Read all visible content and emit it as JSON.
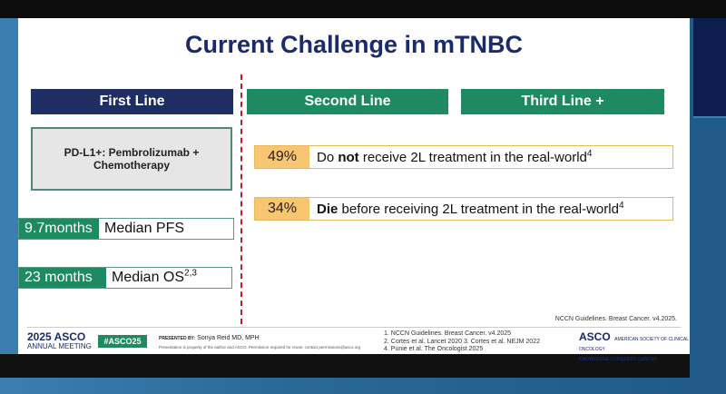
{
  "slide": {
    "title": "Current Challenge in mTNBC",
    "headers": {
      "first": "First Line",
      "second": "Second Line",
      "third": "Third Line +"
    },
    "first_line_box": "PD-L1+: Pembrolizumab + Chemotherapy",
    "stats": [
      {
        "value": "9.7months",
        "label": "Median PFS",
        "sup": ""
      },
      {
        "value": "23 months",
        "label": "Median OS",
        "sup": "2,3"
      }
    ],
    "second_line_rows": [
      {
        "pct": "49%",
        "pre": "Do ",
        "bold": "not",
        "post": " receive 2L treatment in the real-world",
        "sup": "4"
      },
      {
        "pct": "34%",
        "pre": "",
        "bold": "Die",
        "post": " before receiving 2L treatment in the real-world",
        "sup": "4"
      }
    ],
    "footnote_right": "NCCN Guidelines. Breast Cancer. v4.2025.",
    "footer": {
      "year_brand": "2025 ASCO",
      "meeting": "ANNUAL MEETING",
      "hashtag": "#ASCO25",
      "presented_label": "PRESENTED BY:",
      "presenter": "Sonya Reid MD, MPH",
      "disclaimer": "Presentation is property of the author and ASCO. Permission required for reuse; contact permissions@asco.org",
      "references": [
        "1. NCCN Guidelines. Breast Cancer. v4.2025",
        "2. Cortes et al. Lancet 2020 3. Cortes et al. NEJM 2022",
        "4. Punie et al. The Oncologist 2025"
      ],
      "asco_brand": "ASCO",
      "asco_sub": "AMERICAN SOCIETY OF CLINICAL ONCOLOGY",
      "asco_tagline": "KNOWLEDGE CONQUERS CANCER"
    }
  },
  "colors": {
    "navy": "#1e2e62",
    "green": "#1e8a62",
    "amber": "#f8c570",
    "red_divider": "#c0202a"
  }
}
